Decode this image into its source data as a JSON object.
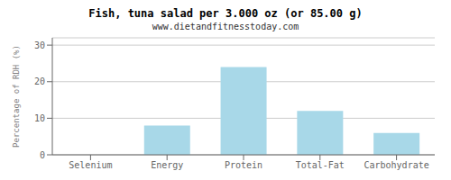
{
  "chart_data": {
    "type": "bar",
    "title": "Fish, tuna salad per 3.000 oz (or 85.00 g)",
    "subtitle": "www.dietandfitnesstoday.com",
    "categories": [
      "Selenium",
      "Energy",
      "Protein",
      "Total-Fat",
      "Carbohydrate"
    ],
    "values": [
      0.0,
      8.0,
      24.0,
      12.0,
      6.0
    ],
    "color": "#a8d8e8",
    "ylabel": "Percentage of RDH (%)",
    "ylim": [
      0,
      32
    ],
    "yticks": [
      0,
      10,
      20,
      30
    ],
    "grid": true
  }
}
